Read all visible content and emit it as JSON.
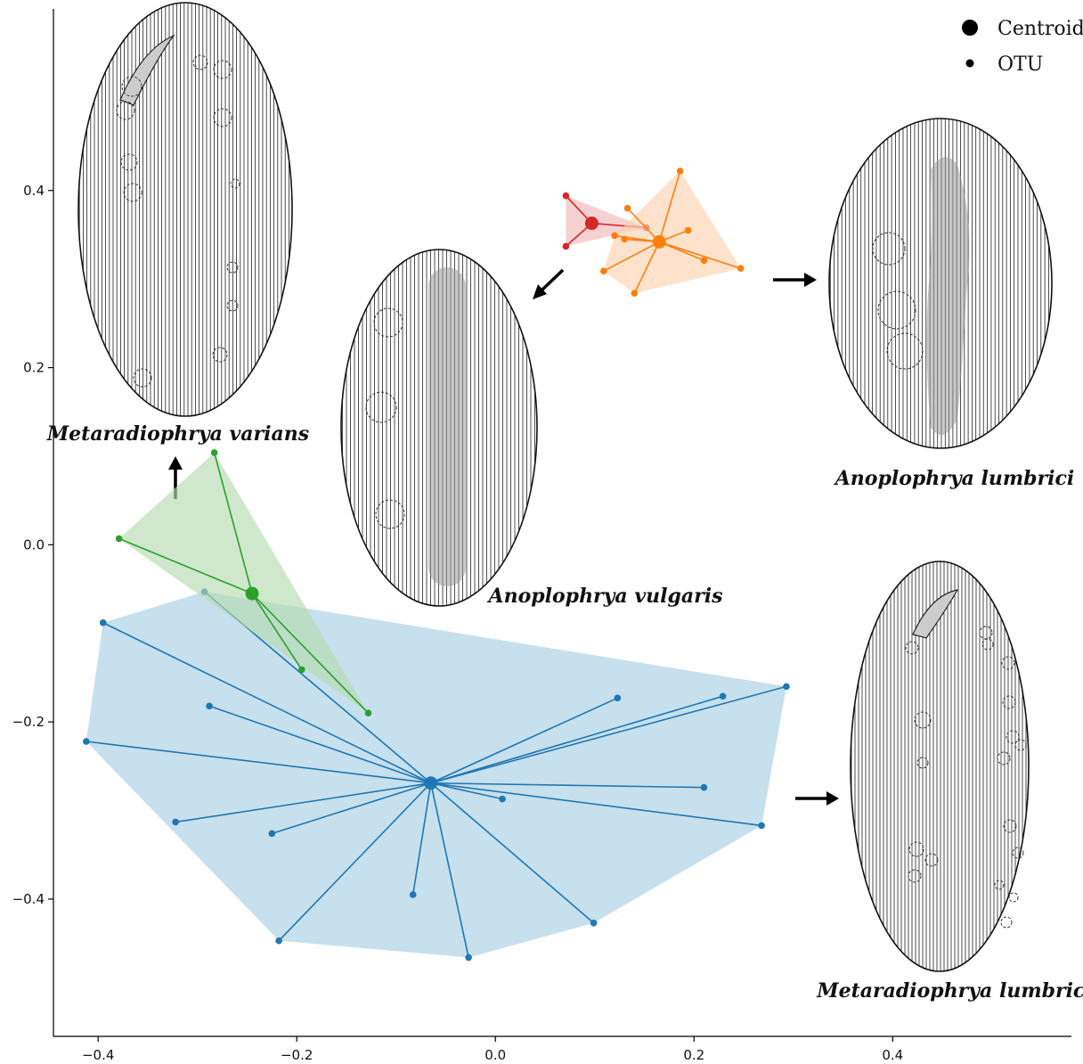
{
  "chart_data": {
    "type": "scatter",
    "title": "",
    "xlabel": "",
    "ylabel": "",
    "xlim": [
      -0.445,
      0.58
    ],
    "ylim": [
      -0.555,
      0.605
    ],
    "xticks": [
      -0.4,
      -0.2,
      0.0,
      0.2,
      0.4
    ],
    "yticks": [
      -0.4,
      -0.2,
      0.0,
      0.2,
      0.4
    ],
    "xtick_labels": [
      "−0.4",
      "−0.2",
      "0.0",
      "0.2",
      "0.4"
    ],
    "ytick_labels": [
      "−0.4",
      "−0.2",
      "0.0",
      "0.2",
      "0.4"
    ],
    "grid": false,
    "legend_position": "top-right",
    "legend": [
      {
        "label": "Centroid",
        "marker": "large-dot"
      },
      {
        "label": "OTU",
        "marker": "small-dot"
      }
    ],
    "series": [
      {
        "color": "#1f77b4",
        "hull_fill": "#a9cfe3",
        "centroid": [
          -0.065,
          -0.269
        ],
        "points": [
          [
            -0.293,
            -0.053
          ],
          [
            -0.395,
            -0.088
          ],
          [
            -0.288,
            -0.182
          ],
          [
            -0.412,
            -0.222
          ],
          [
            -0.322,
            -0.313
          ],
          [
            -0.225,
            -0.326
          ],
          [
            -0.218,
            -0.447
          ],
          [
            -0.083,
            -0.395
          ],
          [
            -0.027,
            -0.466
          ],
          [
            0.007,
            -0.287
          ],
          [
            0.123,
            -0.173
          ],
          [
            0.229,
            -0.171
          ],
          [
            0.293,
            -0.16
          ],
          [
            0.21,
            -0.274
          ],
          [
            0.268,
            -0.317
          ],
          [
            0.099,
            -0.427
          ]
        ],
        "hull": [
          [
            -0.293,
            -0.053
          ],
          [
            0.293,
            -0.16
          ],
          [
            0.268,
            -0.317
          ],
          [
            0.099,
            -0.427
          ],
          [
            -0.027,
            -0.466
          ],
          [
            -0.218,
            -0.447
          ],
          [
            -0.412,
            -0.222
          ],
          [
            -0.395,
            -0.088
          ]
        ]
      },
      {
        "color": "#2ca02c",
        "hull_fill": "#b5dcb0",
        "centroid": [
          -0.245,
          -0.055
        ],
        "points": [
          [
            -0.283,
            0.104
          ],
          [
            -0.379,
            0.007
          ],
          [
            -0.195,
            -0.141
          ],
          [
            -0.128,
            -0.19
          ]
        ],
        "hull": [
          [
            -0.283,
            0.104
          ],
          [
            -0.379,
            0.007
          ],
          [
            -0.128,
            -0.19
          ]
        ]
      },
      {
        "color": "#d62728",
        "hull_fill": "#f1b8b8",
        "centroid": [
          0.097,
          0.363
        ],
        "points": [
          [
            0.071,
            0.394
          ],
          [
            0.071,
            0.337
          ],
          [
            0.152,
            0.358
          ]
        ],
        "hull": [
          [
            0.071,
            0.394
          ],
          [
            0.152,
            0.358
          ],
          [
            0.071,
            0.337
          ]
        ]
      },
      {
        "color": "#ff7f0e",
        "hull_fill": "#fdd3b0",
        "centroid": [
          0.165,
          0.342
        ],
        "points": [
          [
            0.186,
            0.422
          ],
          [
            0.133,
            0.38
          ],
          [
            0.194,
            0.355
          ],
          [
            0.12,
            0.349
          ],
          [
            0.13,
            0.345
          ],
          [
            0.21,
            0.321
          ],
          [
            0.247,
            0.312
          ],
          [
            0.109,
            0.309
          ],
          [
            0.14,
            0.284
          ]
        ],
        "hull": [
          [
            0.186,
            0.422
          ],
          [
            0.247,
            0.312
          ],
          [
            0.14,
            0.284
          ],
          [
            0.109,
            0.309
          ],
          [
            0.12,
            0.349
          ]
        ]
      }
    ],
    "annotations": [
      "Metaradiophrya varians",
      "Anoplophrya vulgaris",
      "Anoplophrya lumbrici",
      "Metaradiophrya lumbrici"
    ]
  }
}
